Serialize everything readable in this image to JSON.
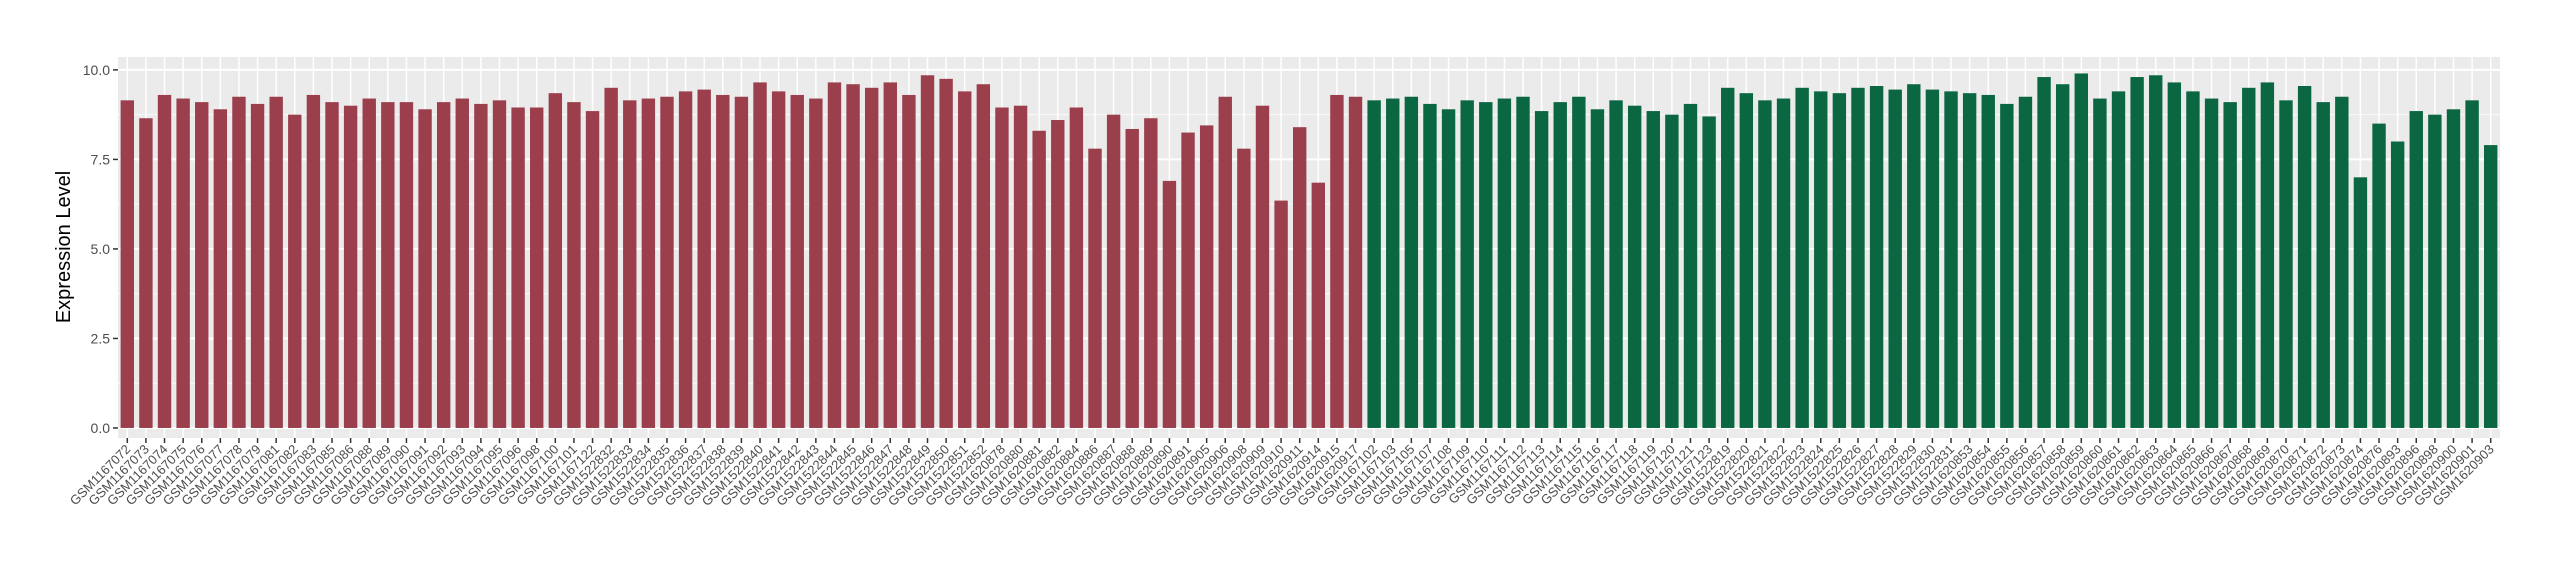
{
  "chart_data": {
    "type": "bar",
    "y_label": "Expression Level",
    "ylim": [
      -0.28,
      10.36
    ],
    "yticks": [
      {
        "value": 0,
        "label": "0.0"
      },
      {
        "value": 2.5,
        "label": "2.5"
      },
      {
        "value": 5,
        "label": "5.0"
      },
      {
        "value": 7.5,
        "label": "7.5"
      },
      {
        "value": 10,
        "label": "10.0"
      }
    ],
    "grid": true,
    "groups": [
      {
        "color": "#9b3f4d",
        "categories": [
          "GSM1167072",
          "GSM1167073",
          "GSM1167074",
          "GSM1167075",
          "GSM1167076",
          "GSM1167077",
          "GSM1167078",
          "GSM1167079",
          "GSM1167081",
          "GSM1167082",
          "GSM1167083",
          "GSM1167085",
          "GSM1167086",
          "GSM1167088",
          "GSM1167089",
          "GSM1167090",
          "GSM1167091",
          "GSM1167092",
          "GSM1167093",
          "GSM1167094",
          "GSM1167095",
          "GSM1167096",
          "GSM1167098",
          "GSM1167100",
          "GSM1167101",
          "GSM1167122",
          "GSM1522832",
          "GSM1522833",
          "GSM1522834",
          "GSM1522835",
          "GSM1522836",
          "GSM1522837",
          "GSM1522838",
          "GSM1522839",
          "GSM1522840",
          "GSM1522841",
          "GSM1522842",
          "GSM1522843",
          "GSM1522844",
          "GSM1522845",
          "GSM1522846",
          "GSM1522847",
          "GSM1522848",
          "GSM1522849",
          "GSM1522850",
          "GSM1522851",
          "GSM1522852",
          "GSM1620878",
          "GSM1620880",
          "GSM1620881",
          "GSM1620882",
          "GSM1620884",
          "GSM1620886",
          "GSM1620887",
          "GSM1620888",
          "GSM1620889",
          "GSM1620890",
          "GSM1620891",
          "GSM1620905",
          "GSM1620906",
          "GSM1620908",
          "GSM1620909",
          "GSM1620910",
          "GSM1620911",
          "GSM1620914",
          "GSM1620915",
          "GSM1620917"
        ],
        "values": [
          9.15,
          8.65,
          9.3,
          9.2,
          9.1,
          8.9,
          9.25,
          9.05,
          9.25,
          8.75,
          9.3,
          9.1,
          9.0,
          9.2,
          9.1,
          9.1,
          8.9,
          9.1,
          9.2,
          9.05,
          9.15,
          8.95,
          8.95,
          9.35,
          9.1,
          8.85,
          9.5,
          9.15,
          9.2,
          9.25,
          9.4,
          9.45,
          9.3,
          9.25,
          9.65,
          9.4,
          9.3,
          9.2,
          9.65,
          9.6,
          9.5,
          9.65,
          9.3,
          9.85,
          9.75,
          9.4,
          9.6,
          8.95,
          9.0,
          8.3,
          8.6,
          8.95,
          7.8,
          8.75,
          8.35,
          8.65,
          6.9,
          8.25,
          8.45,
          9.25,
          7.8,
          9.0,
          6.35,
          8.4,
          6.85,
          9.3,
          9.25
        ]
      },
      {
        "color": "#0b6642",
        "categories": [
          "GSM1167102",
          "GSM1167103",
          "GSM1167105",
          "GSM1167107",
          "GSM1167108",
          "GSM1167109",
          "GSM1167110",
          "GSM1167111",
          "GSM1167112",
          "GSM1167113",
          "GSM1167114",
          "GSM1167115",
          "GSM1167116",
          "GSM1167117",
          "GSM1167118",
          "GSM1167119",
          "GSM1167120",
          "GSM1167121",
          "GSM1167123",
          "GSM1522819",
          "GSM1522820",
          "GSM1522821",
          "GSM1522822",
          "GSM1522823",
          "GSM1522824",
          "GSM1522825",
          "GSM1522826",
          "GSM1522827",
          "GSM1522828",
          "GSM1522829",
          "GSM1522830",
          "GSM1522831",
          "GSM1620853",
          "GSM1620854",
          "GSM1620855",
          "GSM1620856",
          "GSM1620857",
          "GSM1620858",
          "GSM1620859",
          "GSM1620860",
          "GSM1620861",
          "GSM1620862",
          "GSM1620863",
          "GSM1620864",
          "GSM1620865",
          "GSM1620866",
          "GSM1620867",
          "GSM1620868",
          "GSM1620869",
          "GSM1620870",
          "GSM1620871",
          "GSM1620872",
          "GSM1620873",
          "GSM1620874",
          "GSM1620876",
          "GSM1620893",
          "GSM1620896",
          "GSM1620898",
          "GSM1620900",
          "GSM1620901",
          "GSM1620903"
        ],
        "values": [
          9.15,
          9.2,
          9.25,
          9.05,
          8.9,
          9.15,
          9.1,
          9.2,
          9.25,
          8.85,
          9.1,
          9.25,
          8.9,
          9.15,
          9.0,
          8.85,
          8.75,
          9.05,
          8.7,
          9.5,
          9.35,
          9.15,
          9.2,
          9.5,
          9.4,
          9.35,
          9.5,
          9.55,
          9.45,
          9.6,
          9.45,
          9.4,
          9.35,
          9.3,
          9.05,
          9.25,
          9.8,
          9.6,
          9.9,
          9.2,
          9.4,
          9.8,
          9.85,
          9.65,
          9.4,
          9.2,
          9.1,
          9.5,
          9.65,
          9.15,
          9.55,
          9.1,
          9.25,
          7.0,
          8.5,
          8.0,
          8.85,
          8.75,
          8.9,
          9.15,
          7.9
        ]
      }
    ]
  }
}
